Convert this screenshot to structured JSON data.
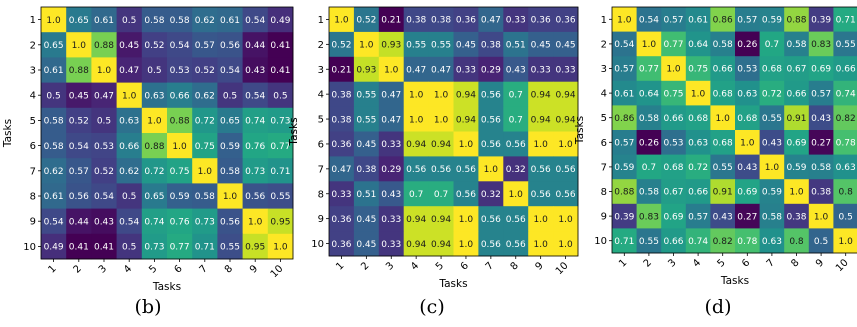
{
  "chart_data": [
    {
      "type": "heatmap",
      "caption": "(b)",
      "xlabel": "Tasks",
      "ylabel": "Tasks",
      "categories": [
        "1",
        "2",
        "3",
        "4",
        "5",
        "6",
        "7",
        "8",
        "9",
        "10"
      ],
      "colormap": "viridis",
      "values": [
        [
          "1.0",
          "0.65",
          "0.61",
          "0.5",
          "0.58",
          "0.58",
          "0.62",
          "0.61",
          "0.54",
          "0.49"
        ],
        [
          "0.65",
          "1.0",
          "0.88",
          "0.45",
          "0.52",
          "0.54",
          "0.57",
          "0.56",
          "0.44",
          "0.41"
        ],
        [
          "0.61",
          "0.88",
          "1.0",
          "0.47",
          "0.5",
          "0.53",
          "0.52",
          "0.54",
          "0.43",
          "0.41"
        ],
        [
          "0.5",
          "0.45",
          "0.47",
          "1.0",
          "0.63",
          "0.66",
          "0.62",
          "0.5",
          "0.54",
          "0.5"
        ],
        [
          "0.58",
          "0.52",
          "0.5",
          "0.63",
          "1.0",
          "0.88",
          "0.72",
          "0.65",
          "0.74",
          "0.73"
        ],
        [
          "0.58",
          "0.54",
          "0.53",
          "0.66",
          "0.88",
          "1.0",
          "0.75",
          "0.59",
          "0.76",
          "0.77"
        ],
        [
          "0.62",
          "0.57",
          "0.52",
          "0.62",
          "0.72",
          "0.75",
          "1.0",
          "0.58",
          "0.73",
          "0.71"
        ],
        [
          "0.61",
          "0.56",
          "0.54",
          "0.5",
          "0.65",
          "0.59",
          "0.58",
          "1.0",
          "0.56",
          "0.55"
        ],
        [
          "0.54",
          "0.44",
          "0.43",
          "0.54",
          "0.74",
          "0.76",
          "0.73",
          "0.56",
          "1.0",
          "0.95"
        ],
        [
          "0.49",
          "0.41",
          "0.41",
          "0.5",
          "0.73",
          "0.77",
          "0.71",
          "0.55",
          "0.95",
          "1.0"
        ]
      ]
    },
    {
      "type": "heatmap",
      "caption": "(c)",
      "xlabel": "Tasks",
      "ylabel": "Tasks",
      "categories": [
        "1",
        "2",
        "3",
        "4",
        "5",
        "6",
        "7",
        "8",
        "9",
        "10"
      ],
      "colormap": "viridis",
      "values": [
        [
          "1.0",
          "0.52",
          "0.21",
          "0.38",
          "0.38",
          "0.36",
          "0.47",
          "0.33",
          "0.36",
          "0.36"
        ],
        [
          "0.52",
          "1.0",
          "0.93",
          "0.55",
          "0.55",
          "0.45",
          "0.38",
          "0.51",
          "0.45",
          "0.45"
        ],
        [
          "0.21",
          "0.93",
          "1.0",
          "0.47",
          "0.47",
          "0.33",
          "0.29",
          "0.43",
          "0.33",
          "0.33"
        ],
        [
          "0.38",
          "0.55",
          "0.47",
          "1.0",
          "1.0",
          "0.94",
          "0.56",
          "0.7",
          "0.94",
          "0.94"
        ],
        [
          "0.38",
          "0.55",
          "0.47",
          "1.0",
          "1.0",
          "0.94",
          "0.56",
          "0.7",
          "0.94",
          "0.94"
        ],
        [
          "0.36",
          "0.45",
          "0.33",
          "0.94",
          "0.94",
          "1.0",
          "0.56",
          "0.56",
          "1.0",
          "1.0"
        ],
        [
          "0.47",
          "0.38",
          "0.29",
          "0.56",
          "0.56",
          "0.56",
          "1.0",
          "0.32",
          "0.56",
          "0.56"
        ],
        [
          "0.33",
          "0.51",
          "0.43",
          "0.7",
          "0.7",
          "0.56",
          "0.32",
          "1.0",
          "0.56",
          "0.56"
        ],
        [
          "0.36",
          "0.45",
          "0.33",
          "0.94",
          "0.94",
          "1.0",
          "0.56",
          "0.56",
          "1.0",
          "1.0"
        ],
        [
          "0.36",
          "0.45",
          "0.33",
          "0.94",
          "0.94",
          "1.0",
          "0.56",
          "0.56",
          "1.0",
          "1.0"
        ]
      ]
    },
    {
      "type": "heatmap",
      "caption": "(d)",
      "xlabel": "Tasks",
      "ylabel": "Tasks",
      "categories": [
        "1",
        "2",
        "3",
        "4",
        "5",
        "6",
        "7",
        "8",
        "9",
        "10"
      ],
      "colormap": "viridis",
      "values": [
        [
          "1.0",
          "0.54",
          "0.57",
          "0.61",
          "0.86",
          "0.57",
          "0.59",
          "0.88",
          "0.39",
          "0.71"
        ],
        [
          "0.54",
          "1.0",
          "0.77",
          "0.64",
          "0.58",
          "0.26",
          "0.7",
          "0.58",
          "0.83",
          "0.55"
        ],
        [
          "0.57",
          "0.77",
          "1.0",
          "0.75",
          "0.66",
          "0.53",
          "0.68",
          "0.67",
          "0.69",
          "0.66"
        ],
        [
          "0.61",
          "0.64",
          "0.75",
          "1.0",
          "0.68",
          "0.63",
          "0.72",
          "0.66",
          "0.57",
          "0.74"
        ],
        [
          "0.86",
          "0.58",
          "0.66",
          "0.68",
          "1.0",
          "0.68",
          "0.55",
          "0.91",
          "0.43",
          "0.82"
        ],
        [
          "0.57",
          "0.26",
          "0.53",
          "0.63",
          "0.68",
          "1.0",
          "0.43",
          "0.69",
          "0.27",
          "0.78"
        ],
        [
          "0.59",
          "0.7",
          "0.68",
          "0.72",
          "0.55",
          "0.43",
          "1.0",
          "0.59",
          "0.58",
          "0.63"
        ],
        [
          "0.88",
          "0.58",
          "0.67",
          "0.66",
          "0.91",
          "0.69",
          "0.59",
          "1.0",
          "0.38",
          "0.8"
        ],
        [
          "0.39",
          "0.83",
          "0.69",
          "0.57",
          "0.43",
          "0.27",
          "0.58",
          "0.38",
          "1.0",
          "0.5"
        ],
        [
          "0.71",
          "0.55",
          "0.66",
          "0.74",
          "0.82",
          "0.78",
          "0.63",
          "0.8",
          "0.5",
          "1.0"
        ]
      ]
    }
  ]
}
